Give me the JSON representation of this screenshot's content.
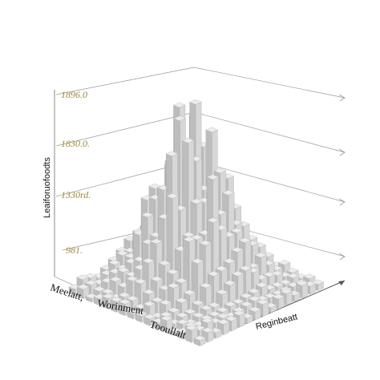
{
  "chart_data": {
    "type": "bar",
    "subtype": "3d-bar-field",
    "title": "",
    "ylabel": "Leaiforuofoodts",
    "base_labels": [
      "Meelatt,",
      "Worinment",
      "Tooullalt"
    ],
    "depth_label": "Reginbeatt",
    "y_ticks": [
      {
        "label": "981.",
        "value": 981
      },
      {
        "label": "1330rd.",
        "value": 1330
      },
      {
        "label": "1830.0.",
        "value": 1830
      },
      {
        "label": "1896.0",
        "value": 1896
      }
    ],
    "peak_value": 1896,
    "grid": true,
    "colors": {
      "bar_top": "#ececec",
      "bar_left": "#bdbdbd",
      "bar_right": "#d7d7d7",
      "tick_label": "#a08a3c",
      "lines": "#999999"
    }
  }
}
